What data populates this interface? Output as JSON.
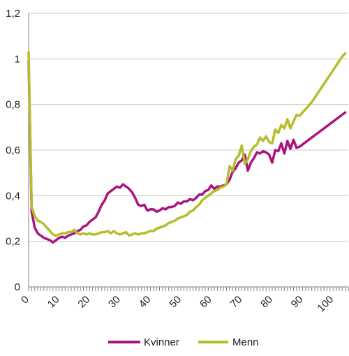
{
  "chart_data": {
    "type": "line",
    "title": "",
    "xlabel": "",
    "ylabel": "",
    "xlim": [
      0,
      105
    ],
    "ylim": [
      0,
      1.2
    ],
    "x_ticks": [
      0,
      10,
      20,
      30,
      40,
      50,
      60,
      70,
      80,
      90,
      100
    ],
    "y_ticks": [
      {
        "value": 0,
        "label": "0"
      },
      {
        "value": 0.2,
        "label": "0,2"
      },
      {
        "value": 0.4,
        "label": "0,4"
      },
      {
        "value": 0.6,
        "label": "0,6"
      },
      {
        "value": 0.8,
        "label": "0,8"
      },
      {
        "value": 1.0,
        "label": "1"
      },
      {
        "value": 1.2,
        "label": "1,2"
      }
    ],
    "grid": "horizontal",
    "legend_position": "bottom",
    "series": [
      {
        "name": "Kvinner",
        "color": "#a8157f",
        "points": [
          [
            0,
            0.99
          ],
          [
            1,
            0.33
          ],
          [
            2,
            0.26
          ],
          [
            3,
            0.235
          ],
          [
            4,
            0.225
          ],
          [
            5,
            0.215
          ],
          [
            6,
            0.21
          ],
          [
            7,
            0.205
          ],
          [
            8,
            0.195
          ],
          [
            9,
            0.205
          ],
          [
            10,
            0.215
          ],
          [
            11,
            0.22
          ],
          [
            12,
            0.215
          ],
          [
            13,
            0.225
          ],
          [
            14,
            0.23
          ],
          [
            15,
            0.235
          ],
          [
            16,
            0.245
          ],
          [
            17,
            0.25
          ],
          [
            18,
            0.265
          ],
          [
            19,
            0.27
          ],
          [
            20,
            0.285
          ],
          [
            21,
            0.295
          ],
          [
            22,
            0.305
          ],
          [
            23,
            0.33
          ],
          [
            24,
            0.36
          ],
          [
            25,
            0.38
          ],
          [
            26,
            0.41
          ],
          [
            27,
            0.42
          ],
          [
            28,
            0.43
          ],
          [
            29,
            0.44
          ],
          [
            30,
            0.435
          ],
          [
            31,
            0.45
          ],
          [
            32,
            0.44
          ],
          [
            33,
            0.43
          ],
          [
            34,
            0.415
          ],
          [
            35,
            0.39
          ],
          [
            36,
            0.36
          ],
          [
            37,
            0.355
          ],
          [
            38,
            0.36
          ],
          [
            39,
            0.335
          ],
          [
            40,
            0.34
          ],
          [
            41,
            0.34
          ],
          [
            42,
            0.33
          ],
          [
            43,
            0.335
          ],
          [
            44,
            0.345
          ],
          [
            45,
            0.34
          ],
          [
            46,
            0.35
          ],
          [
            47,
            0.35
          ],
          [
            48,
            0.355
          ],
          [
            49,
            0.37
          ],
          [
            50,
            0.365
          ],
          [
            51,
            0.375
          ],
          [
            52,
            0.375
          ],
          [
            53,
            0.385
          ],
          [
            54,
            0.38
          ],
          [
            55,
            0.39
          ],
          [
            56,
            0.405
          ],
          [
            57,
            0.405
          ],
          [
            58,
            0.42
          ],
          [
            59,
            0.425
          ],
          [
            60,
            0.445
          ],
          [
            61,
            0.43
          ],
          [
            62,
            0.44
          ],
          [
            63,
            0.44
          ],
          [
            64,
            0.445
          ],
          [
            65,
            0.45
          ],
          [
            66,
            0.47
          ],
          [
            67,
            0.505
          ],
          [
            68,
            0.52
          ],
          [
            69,
            0.545
          ],
          [
            70,
            0.555
          ],
          [
            71,
            0.58
          ],
          [
            72,
            0.51
          ],
          [
            73,
            0.545
          ],
          [
            74,
            0.565
          ],
          [
            75,
            0.59
          ],
          [
            76,
            0.585
          ],
          [
            77,
            0.595
          ],
          [
            78,
            0.59
          ],
          [
            79,
            0.58
          ],
          [
            80,
            0.545
          ],
          [
            81,
            0.6
          ],
          [
            82,
            0.595
          ],
          [
            83,
            0.63
          ],
          [
            84,
            0.585
          ],
          [
            85,
            0.64
          ],
          [
            86,
            0.605
          ],
          [
            87,
            0.645
          ],
          [
            88,
            0.61
          ],
          [
            89,
            0.615
          ],
          [
            90,
            0.625
          ],
          [
            91,
            0.635
          ],
          [
            92,
            0.645
          ],
          [
            93,
            0.655
          ],
          [
            94,
            0.665
          ],
          [
            95,
            0.675
          ],
          [
            96,
            0.685
          ],
          [
            97,
            0.695
          ],
          [
            98,
            0.705
          ],
          [
            99,
            0.715
          ],
          [
            100,
            0.725
          ],
          [
            101,
            0.735
          ],
          [
            102,
            0.745
          ],
          [
            103,
            0.755
          ],
          [
            104,
            0.765
          ]
        ]
      },
      {
        "name": "Menn",
        "color": "#b5bd2b",
        "points": [
          [
            0,
            1.03
          ],
          [
            1,
            0.35
          ],
          [
            2,
            0.31
          ],
          [
            3,
            0.29
          ],
          [
            4,
            0.285
          ],
          [
            5,
            0.275
          ],
          [
            6,
            0.26
          ],
          [
            7,
            0.245
          ],
          [
            8,
            0.23
          ],
          [
            9,
            0.225
          ],
          [
            10,
            0.23
          ],
          [
            11,
            0.235
          ],
          [
            12,
            0.235
          ],
          [
            13,
            0.24
          ],
          [
            14,
            0.24
          ],
          [
            15,
            0.25
          ],
          [
            16,
            0.235
          ],
          [
            17,
            0.23
          ],
          [
            18,
            0.235
          ],
          [
            19,
            0.23
          ],
          [
            20,
            0.235
          ],
          [
            21,
            0.23
          ],
          [
            22,
            0.23
          ],
          [
            23,
            0.235
          ],
          [
            24,
            0.24
          ],
          [
            25,
            0.24
          ],
          [
            26,
            0.245
          ],
          [
            27,
            0.235
          ],
          [
            28,
            0.245
          ],
          [
            29,
            0.235
          ],
          [
            30,
            0.23
          ],
          [
            31,
            0.235
          ],
          [
            32,
            0.24
          ],
          [
            33,
            0.225
          ],
          [
            34,
            0.23
          ],
          [
            35,
            0.235
          ],
          [
            36,
            0.23
          ],
          [
            37,
            0.235
          ],
          [
            38,
            0.235
          ],
          [
            39,
            0.24
          ],
          [
            40,
            0.245
          ],
          [
            41,
            0.245
          ],
          [
            42,
            0.255
          ],
          [
            43,
            0.26
          ],
          [
            44,
            0.265
          ],
          [
            45,
            0.27
          ],
          [
            46,
            0.28
          ],
          [
            47,
            0.285
          ],
          [
            48,
            0.29
          ],
          [
            49,
            0.3
          ],
          [
            50,
            0.305
          ],
          [
            51,
            0.31
          ],
          [
            52,
            0.315
          ],
          [
            53,
            0.33
          ],
          [
            54,
            0.335
          ],
          [
            55,
            0.35
          ],
          [
            56,
            0.36
          ],
          [
            57,
            0.38
          ],
          [
            58,
            0.39
          ],
          [
            59,
            0.4
          ],
          [
            60,
            0.41
          ],
          [
            61,
            0.42
          ],
          [
            62,
            0.425
          ],
          [
            63,
            0.435
          ],
          [
            64,
            0.44
          ],
          [
            65,
            0.45
          ],
          [
            66,
            0.53
          ],
          [
            67,
            0.51
          ],
          [
            68,
            0.56
          ],
          [
            69,
            0.575
          ],
          [
            70,
            0.62
          ],
          [
            71,
            0.54
          ],
          [
            72,
            0.56
          ],
          [
            73,
            0.595
          ],
          [
            74,
            0.615
          ],
          [
            75,
            0.625
          ],
          [
            76,
            0.655
          ],
          [
            77,
            0.64
          ],
          [
            78,
            0.66
          ],
          [
            79,
            0.635
          ],
          [
            80,
            0.63
          ],
          [
            81,
            0.69
          ],
          [
            82,
            0.675
          ],
          [
            83,
            0.71
          ],
          [
            84,
            0.695
          ],
          [
            85,
            0.735
          ],
          [
            86,
            0.695
          ],
          [
            87,
            0.725
          ],
          [
            88,
            0.755
          ],
          [
            89,
            0.75
          ],
          [
            90,
            0.765
          ],
          [
            91,
            0.78
          ],
          [
            92,
            0.795
          ],
          [
            93,
            0.81
          ],
          [
            94,
            0.83
          ],
          [
            95,
            0.85
          ],
          [
            96,
            0.87
          ],
          [
            97,
            0.89
          ],
          [
            98,
            0.91
          ],
          [
            99,
            0.93
          ],
          [
            100,
            0.95
          ],
          [
            101,
            0.97
          ],
          [
            102,
            0.99
          ],
          [
            103,
            1.01
          ],
          [
            104,
            1.025
          ]
        ]
      }
    ]
  }
}
